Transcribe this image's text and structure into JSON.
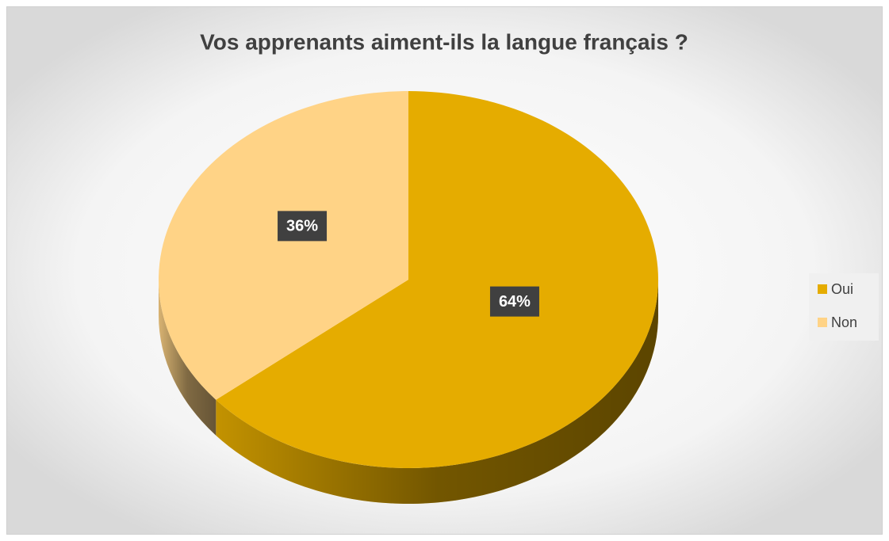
{
  "chart_data": {
    "type": "pie",
    "title": "Vos apprenants aiment-ils la langue français ?",
    "categories": [
      "Oui",
      "Non"
    ],
    "values": [
      64,
      36
    ],
    "value_labels": [
      "64%",
      "36%"
    ],
    "colors": [
      "#e5ac00",
      "#ffd386"
    ],
    "legend": "right"
  }
}
